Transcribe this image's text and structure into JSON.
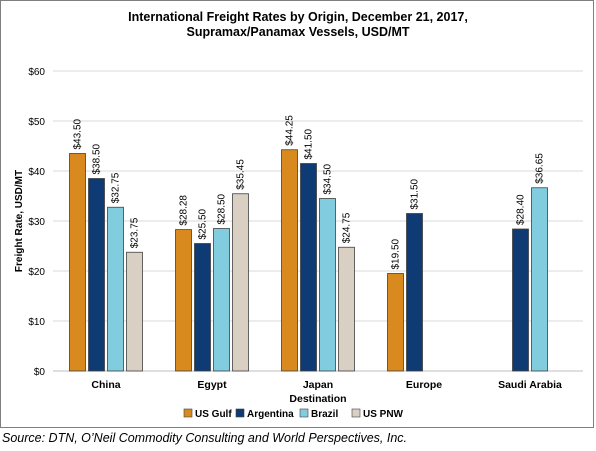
{
  "chart_data": {
    "type": "bar",
    "title_lines": [
      "International Freight Rates by Origin, December 21, 2017,",
      "Supramax/Panamax Vessels, USD/MT"
    ],
    "xlabel": "Destination",
    "ylabel": "Freight Rate, USD/MT",
    "ylim": [
      0,
      60
    ],
    "yticks": [
      0,
      10,
      20,
      30,
      40,
      50,
      60
    ],
    "ytick_labels": [
      "$0",
      "$10",
      "$20",
      "$30",
      "$40",
      "$50",
      "$60"
    ],
    "grid": true,
    "legend_position": "bottom",
    "categories": [
      "China",
      "Egypt",
      "Japan",
      "Europe",
      "Saudi Arabia"
    ],
    "series": [
      {
        "name": "US Gulf",
        "color": "#D98A1E",
        "values": [
          43.5,
          28.28,
          44.25,
          19.5,
          null
        ],
        "labels": [
          "$43.50",
          "$28.28",
          "$44.25",
          "$19.50",
          null
        ]
      },
      {
        "name": "Argentina",
        "color": "#0E3B73",
        "values": [
          38.5,
          25.5,
          41.5,
          31.5,
          28.4
        ],
        "labels": [
          "$38.50",
          "$25.50",
          "$41.50",
          "$31.50",
          "$28.40"
        ]
      },
      {
        "name": "Brazil",
        "color": "#82CCE0",
        "values": [
          32.75,
          28.5,
          34.5,
          null,
          36.65
        ],
        "labels": [
          "$32.75",
          "$28.50",
          "$34.50",
          null,
          "$36.65"
        ]
      },
      {
        "name": "US PNW",
        "color": "#D9D0C3",
        "values": [
          23.75,
          35.45,
          24.75,
          null,
          null
        ],
        "labels": [
          "$23.75",
          "$35.45",
          "$24.75",
          null,
          null
        ]
      }
    ]
  },
  "source_text": "Source: DTN, O’Neil Commodity Consulting and World Perspectives, Inc."
}
